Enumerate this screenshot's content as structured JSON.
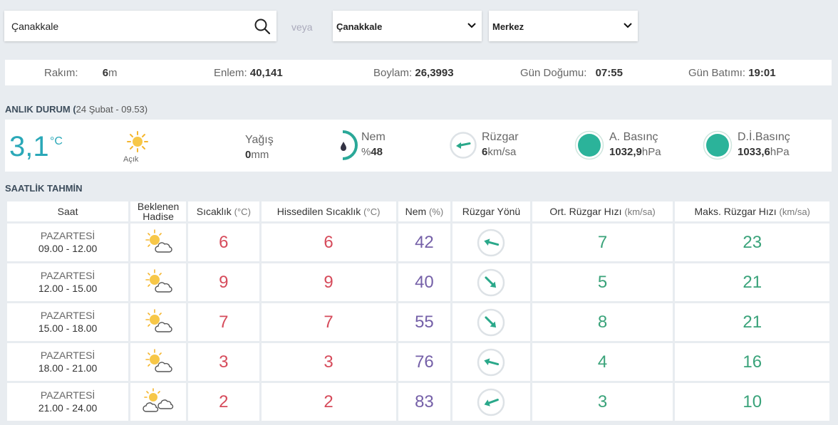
{
  "search": {
    "value": "Çanakkale",
    "veya": "veya"
  },
  "selects": {
    "il": "Çanakkale",
    "ilce": "Merkez"
  },
  "info": {
    "rakim_label": "Rakım:",
    "rakim_value": "6",
    "rakim_unit": "m",
    "enlem_label": "Enlem:",
    "enlem_value": "40,141",
    "boylam_label": "Boylam:",
    "boylam_value": "26,3993",
    "dogum_label": "Gün Doğumu:",
    "dogum_value": "07:55",
    "batim_label": "Gün Batımı:",
    "batim_value": "19:01"
  },
  "current": {
    "title": "ANLIK DURUM (",
    "subtitle": "24 Şubat - 09.53)",
    "temp": "3,1",
    "temp_unit": "°C",
    "condition": "Açık",
    "yagis_label": "Yağış",
    "yagis_value": "0",
    "yagis_unit": "mm",
    "nem_label": "Nem",
    "nem_prefix": "%",
    "nem_value": "48",
    "ruzgar_label": "Rüzgar",
    "ruzgar_value": "6",
    "ruzgar_unit": "km/sa",
    "abasinc_label": "A. Basınç",
    "abasinc_value": "1032,9",
    "abasinc_unit": "hPa",
    "dibasinc_label": "D.İ.Basınç",
    "dibasinc_value": "1033,6",
    "dibasinc_unit": "hPa",
    "colors": {
      "accent": "#2aa8b8",
      "pressure": "#2bb39a"
    }
  },
  "forecast": {
    "title": "SAATLİK TAHMİN",
    "headers": {
      "saat": "Saat",
      "hadise1": "Beklenen",
      "hadise2": "Hadise",
      "sicaklik": "Sıcaklık",
      "sicaklik_unit": "(°C)",
      "hissedilen": "Hissedilen Sıcaklık",
      "hissedilen_unit": "(°C)",
      "nem": "Nem",
      "nem_unit": "(%)",
      "yon": "Rüzgar Yönü",
      "ort": "Ort. Rüzgar Hızı",
      "ort_unit": "(km/sa)",
      "maks": "Maks. Rüzgar Hızı",
      "maks_unit": "(km/sa)"
    },
    "rows": [
      {
        "day": "PAZARTESİ",
        "time": "09.00 - 12.00",
        "icon": "partly-cloudy-icon",
        "temp": "6",
        "feels": "6",
        "nem": "42",
        "wind_dir": "west-southwest",
        "ort": "7",
        "maks": "23"
      },
      {
        "day": "PAZARTESİ",
        "time": "12.00 - 15.00",
        "icon": "partly-cloudy-icon",
        "temp": "9",
        "feels": "9",
        "nem": "40",
        "wind_dir": "southeast",
        "ort": "5",
        "maks": "21"
      },
      {
        "day": "PAZARTESİ",
        "time": "15.00 - 18.00",
        "icon": "partly-cloudy-icon",
        "temp": "7",
        "feels": "7",
        "nem": "55",
        "wind_dir": "southeast",
        "ort": "8",
        "maks": "21"
      },
      {
        "day": "PAZARTESİ",
        "time": "18.00 - 21.00",
        "icon": "partly-cloudy-icon",
        "temp": "3",
        "feels": "3",
        "nem": "76",
        "wind_dir": "west-southwest",
        "ort": "4",
        "maks": "16"
      },
      {
        "day": "PAZARTESİ",
        "time": "21.00 - 24.00",
        "icon": "cloudy-sun-icon",
        "temp": "2",
        "feels": "2",
        "nem": "83",
        "wind_dir": "west-northwest",
        "ort": "3",
        "maks": "10"
      }
    ]
  }
}
